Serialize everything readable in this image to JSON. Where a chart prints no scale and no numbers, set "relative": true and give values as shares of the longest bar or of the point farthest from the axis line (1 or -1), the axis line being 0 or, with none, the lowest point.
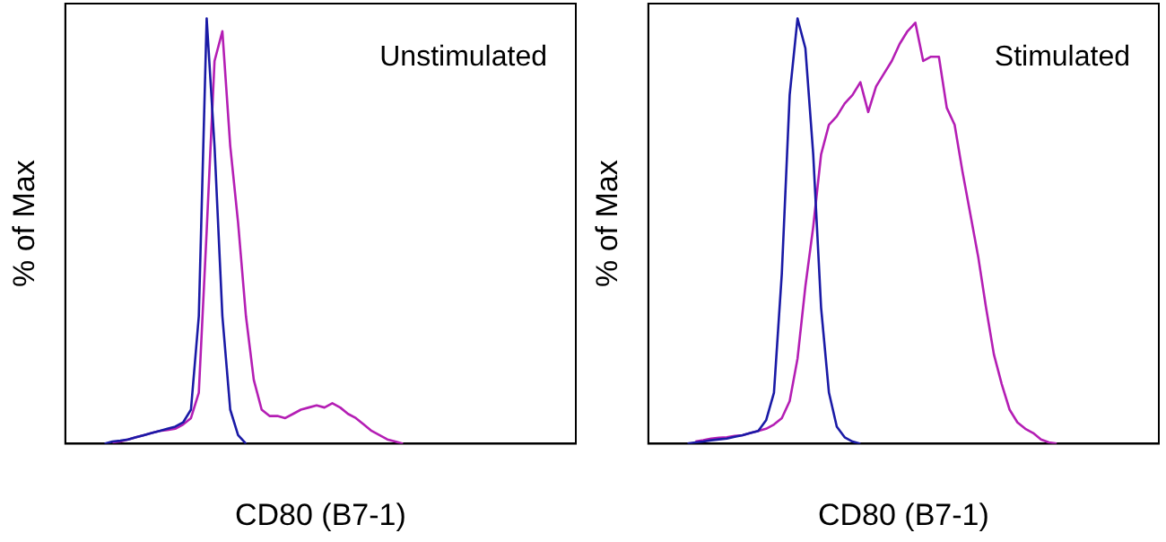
{
  "chart_data": [
    {
      "type": "line",
      "ylabel": "% of Max",
      "xlabel": "CD80 (B7-1)",
      "relative": true,
      "grid": false,
      "legend": false,
      "marker": "none",
      "line_style": "solid",
      "annotations": [
        "Unstimulated"
      ],
      "categories": [
        null,
        null,
        null,
        null,
        null,
        null,
        null,
        null,
        null,
        null,
        null,
        null,
        null,
        null,
        null,
        null,
        null,
        null,
        null,
        null,
        null,
        null,
        null,
        null,
        null,
        null,
        null,
        null,
        null,
        null,
        null,
        null,
        null,
        null,
        null,
        null,
        null,
        null,
        null,
        null,
        null,
        null,
        null,
        null,
        null,
        null,
        null,
        null,
        null,
        null,
        null,
        null,
        null,
        null,
        null,
        null,
        null,
        null,
        null,
        null,
        null,
        null,
        null,
        null,
        null,
        null
      ],
      "series": [
        {
          "color": "#1a1aa6",
          "values": [
            null,
            null,
            null,
            null,
            null,
            0,
            0.005,
            0.007,
            0.01,
            0.015,
            0.02,
            0.025,
            0.03,
            0.035,
            0.04,
            0.05,
            0.08,
            0.3,
            1,
            0.7,
            0.3,
            0.08,
            0.02,
            0,
            null,
            null,
            null,
            null,
            null,
            null,
            null,
            null,
            null,
            null,
            null,
            null,
            null,
            null,
            null,
            null,
            null,
            null,
            null,
            null,
            null,
            null,
            null,
            null,
            null,
            null,
            null,
            null,
            null,
            null,
            null,
            null,
            null,
            null,
            null,
            null,
            null,
            null,
            null,
            null,
            null,
            null
          ]
        },
        {
          "color": "#b41eb4",
          "values": [
            null,
            null,
            null,
            null,
            null,
            null,
            0.003,
            0.005,
            0.01,
            0.015,
            0.02,
            0.025,
            0.03,
            0.032,
            0.035,
            0.045,
            0.06,
            0.12,
            0.5,
            0.9,
            0.97,
            0.7,
            0.52,
            0.3,
            0.15,
            0.08,
            0.065,
            0.065,
            0.06,
            0.07,
            0.08,
            0.085,
            0.09,
            0.085,
            0.095,
            0.085,
            0.07,
            0.06,
            0.045,
            0.03,
            0.02,
            0.01,
            0.005,
            0,
            null,
            null,
            null,
            null,
            null,
            null,
            null,
            null,
            null,
            null,
            null,
            null,
            null,
            null,
            null,
            null,
            null,
            null,
            null,
            null,
            null,
            null
          ]
        }
      ]
    },
    {
      "type": "line",
      "ylabel": "% of Max",
      "xlabel": "CD80 (B7-1)",
      "relative": true,
      "grid": false,
      "legend": false,
      "marker": "none",
      "line_style": "solid",
      "annotations": [
        "Stimulated"
      ],
      "categories": [
        null,
        null,
        null,
        null,
        null,
        null,
        null,
        null,
        null,
        null,
        null,
        null,
        null,
        null,
        null,
        null,
        null,
        null,
        null,
        null,
        null,
        null,
        null,
        null,
        null,
        null,
        null,
        null,
        null,
        null,
        null,
        null,
        null,
        null,
        null,
        null,
        null,
        null,
        null,
        null,
        null,
        null,
        null,
        null,
        null,
        null,
        null,
        null,
        null,
        null,
        null,
        null,
        null,
        null,
        null,
        null,
        null,
        null,
        null,
        null,
        null,
        null,
        null,
        null,
        null,
        null
      ],
      "series": [
        {
          "color": "#1a1aa6",
          "values": [
            null,
            null,
            null,
            null,
            null,
            0,
            0.003,
            0.005,
            0.008,
            0.01,
            0.012,
            0.016,
            0.02,
            0.025,
            0.03,
            0.055,
            0.12,
            0.4,
            0.82,
            1,
            0.93,
            0.68,
            0.32,
            0.12,
            0.04,
            0.015,
            0.005,
            0,
            null,
            null,
            null,
            null,
            null,
            null,
            null,
            null,
            null,
            null,
            null,
            null,
            null,
            null,
            null,
            null,
            null,
            null,
            null,
            null,
            null,
            null,
            null,
            null,
            null,
            null,
            null,
            null,
            null,
            null,
            null,
            null,
            null,
            null,
            null,
            null,
            null,
            null
          ]
        },
        {
          "color": "#b41eb4",
          "values": [
            null,
            null,
            null,
            null,
            null,
            null,
            0.005,
            0.008,
            0.012,
            0.014,
            0.015,
            0.018,
            0.02,
            0.025,
            0.03,
            0.035,
            0.045,
            0.06,
            0.1,
            0.2,
            0.37,
            0.51,
            0.68,
            0.75,
            0.77,
            0.8,
            0.82,
            0.85,
            0.78,
            0.84,
            0.87,
            0.9,
            0.94,
            0.97,
            0.99,
            0.9,
            0.91,
            0.91,
            0.79,
            0.75,
            0.64,
            0.54,
            0.44,
            0.32,
            0.21,
            0.14,
            0.08,
            0.05,
            0.035,
            0.025,
            0.01,
            0.003,
            0,
            null,
            null,
            null,
            null,
            null,
            null,
            null,
            null,
            null,
            null,
            null,
            null,
            null
          ]
        }
      ]
    }
  ]
}
